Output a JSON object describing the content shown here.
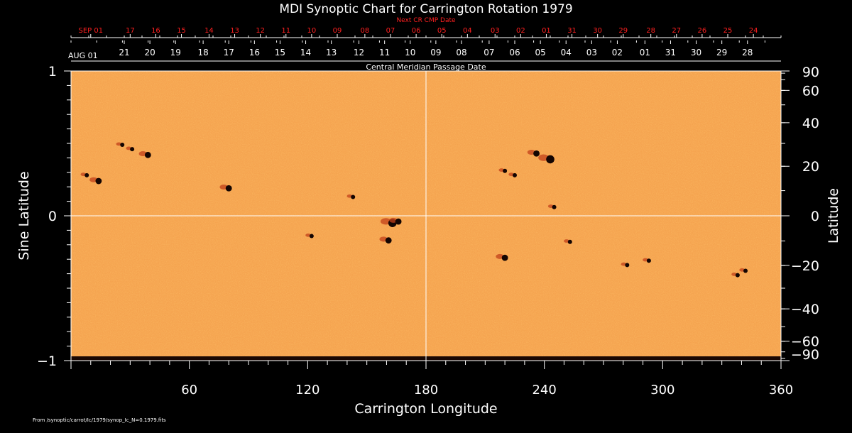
{
  "chart_data": {
    "type": "heatmap",
    "title": "MDI Synoptic Chart for Carrington Rotation 1979",
    "xlabel": "Carrington Longitude",
    "ylabel": "Sine Latitude",
    "ylabel_right": "Latitude",
    "top_axis_title": "Central Meridian Passage Date",
    "next_axis_title": "Next CR CMP Date",
    "xlim": [
      0,
      360
    ],
    "ylim": [
      -1,
      1
    ],
    "x_ticks": [
      {
        "value": 60,
        "label": "60"
      },
      {
        "value": 120,
        "label": "120"
      },
      {
        "value": 180,
        "label": "180"
      },
      {
        "value": 240,
        "label": "240"
      },
      {
        "value": 300,
        "label": "300"
      },
      {
        "value": 360,
        "label": "360"
      }
    ],
    "y_ticks": [
      {
        "value": 1,
        "label": "1"
      },
      {
        "value": 0,
        "label": "0"
      },
      {
        "value": -1,
        "label": "−1"
      }
    ],
    "lat_ticks": [
      {
        "value": 90,
        "label": "90"
      },
      {
        "value": 60,
        "label": "60"
      },
      {
        "value": 40,
        "label": "40"
      },
      {
        "value": 20,
        "label": "20"
      },
      {
        "value": 0,
        "label": "0"
      },
      {
        "value": -20,
        "label": "−20"
      },
      {
        "value": -40,
        "label": "−40"
      },
      {
        "value": -60,
        "label": "−60"
      },
      {
        "value": -90,
        "label": "−90"
      }
    ],
    "cmp_dates": [
      {
        "lon": 0,
        "label": "AUG 01"
      },
      {
        "lon": 27,
        "label": "21"
      },
      {
        "lon": 40,
        "label": "20"
      },
      {
        "lon": 53,
        "label": "19"
      },
      {
        "lon": 67,
        "label": "18"
      },
      {
        "lon": 80,
        "label": "17"
      },
      {
        "lon": 93,
        "label": "16"
      },
      {
        "lon": 106,
        "label": "15"
      },
      {
        "lon": 119,
        "label": "14"
      },
      {
        "lon": 132,
        "label": "13"
      },
      {
        "lon": 146,
        "label": "12"
      },
      {
        "lon": 159,
        "label": "11"
      },
      {
        "lon": 172,
        "label": "10"
      },
      {
        "lon": 185,
        "label": "09"
      },
      {
        "lon": 198,
        "label": "08"
      },
      {
        "lon": 212,
        "label": "07"
      },
      {
        "lon": 225,
        "label": "06"
      },
      {
        "lon": 238,
        "label": "05"
      },
      {
        "lon": 251,
        "label": "04"
      },
      {
        "lon": 264,
        "label": "03"
      },
      {
        "lon": 277,
        "label": "02"
      },
      {
        "lon": 291,
        "label": "01"
      },
      {
        "lon": 304,
        "label": "31"
      },
      {
        "lon": 317,
        "label": "30"
      },
      {
        "lon": 330,
        "label": "29"
      },
      {
        "lon": 343,
        "label": "28"
      }
    ],
    "next_cmp_dates": [
      {
        "lon": 10,
        "label": "SEP 01"
      },
      {
        "lon": 30,
        "label": "17"
      },
      {
        "lon": 43,
        "label": "16"
      },
      {
        "lon": 56,
        "label": "15"
      },
      {
        "lon": 70,
        "label": "14"
      },
      {
        "lon": 83,
        "label": "13"
      },
      {
        "lon": 96,
        "label": "12"
      },
      {
        "lon": 109,
        "label": "11"
      },
      {
        "lon": 122,
        "label": "10"
      },
      {
        "lon": 135,
        "label": "09"
      },
      {
        "lon": 149,
        "label": "08"
      },
      {
        "lon": 162,
        "label": "07"
      },
      {
        "lon": 175,
        "label": "06"
      },
      {
        "lon": 188,
        "label": "05"
      },
      {
        "lon": 201,
        "label": "04"
      },
      {
        "lon": 215,
        "label": "03"
      },
      {
        "lon": 228,
        "label": "02"
      },
      {
        "lon": 241,
        "label": "01"
      },
      {
        "lon": 254,
        "label": "31"
      },
      {
        "lon": 267,
        "label": "30"
      },
      {
        "lon": 280,
        "label": "29"
      },
      {
        "lon": 294,
        "label": "28"
      },
      {
        "lon": 307,
        "label": "27"
      },
      {
        "lon": 320,
        "label": "26"
      },
      {
        "lon": 333,
        "label": "25"
      },
      {
        "lon": 346,
        "label": "24"
      }
    ],
    "sunspots": [
      {
        "lon": 14,
        "sinlat": 0.24,
        "size": 2
      },
      {
        "lon": 8,
        "sinlat": 0.28,
        "size": 1
      },
      {
        "lon": 26,
        "sinlat": 0.49,
        "size": 1
      },
      {
        "lon": 31,
        "sinlat": 0.46,
        "size": 1
      },
      {
        "lon": 39,
        "sinlat": 0.42,
        "size": 2
      },
      {
        "lon": 80,
        "sinlat": 0.19,
        "size": 2
      },
      {
        "lon": 143,
        "sinlat": 0.13,
        "size": 1
      },
      {
        "lon": 163,
        "sinlat": -0.05,
        "size": 3
      },
      {
        "lon": 166,
        "sinlat": -0.04,
        "size": 2
      },
      {
        "lon": 161,
        "sinlat": -0.17,
        "size": 2
      },
      {
        "lon": 122,
        "sinlat": -0.14,
        "size": 1
      },
      {
        "lon": 220,
        "sinlat": 0.31,
        "size": 1
      },
      {
        "lon": 225,
        "sinlat": 0.28,
        "size": 1
      },
      {
        "lon": 236,
        "sinlat": 0.43,
        "size": 2
      },
      {
        "lon": 243,
        "sinlat": 0.39,
        "size": 3
      },
      {
        "lon": 245,
        "sinlat": 0.06,
        "size": 1
      },
      {
        "lon": 220,
        "sinlat": -0.29,
        "size": 2
      },
      {
        "lon": 253,
        "sinlat": -0.18,
        "size": 1
      },
      {
        "lon": 282,
        "sinlat": -0.34,
        "size": 1
      },
      {
        "lon": 293,
        "sinlat": -0.31,
        "size": 1
      },
      {
        "lon": 338,
        "sinlat": -0.41,
        "size": 1
      },
      {
        "lon": 342,
        "sinlat": -0.38,
        "size": 1
      }
    ],
    "colors": {
      "background": "#000000",
      "map": "#f5a450",
      "spot": "#140502",
      "next_dates": "#ff2020",
      "guides": "#ffffff"
    }
  },
  "footer": "From /synoptic/carrot/Ic/1979/synop_Ic_N=0.1979.fits"
}
